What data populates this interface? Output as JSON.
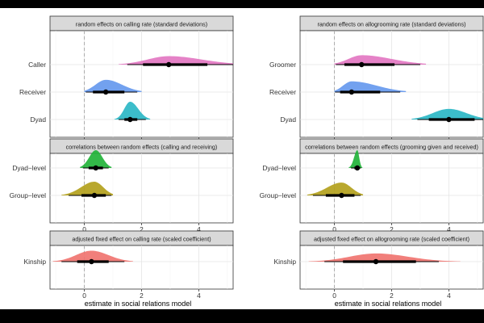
{
  "chart_data": [
    {
      "type": "halfeye",
      "title": "random effects on calling rate (standard deviations)",
      "xlim": [
        -1.2,
        5.2
      ],
      "xticks": [
        0,
        2,
        4
      ],
      "categories": [
        "Caller",
        "Receiver",
        "Dyad"
      ],
      "series": [
        {
          "label": "Caller",
          "color": "#E377C2",
          "median": 2.95,
          "interval66": [
            2.05,
            4.3
          ],
          "interval95": [
            1.5,
            5.2
          ],
          "density_range": [
            1.2,
            5.2
          ]
        },
        {
          "label": "Receiver",
          "color": "#6699EE",
          "median": 0.75,
          "interval66": [
            0.3,
            1.4
          ],
          "interval95": [
            0.05,
            1.85
          ],
          "density_range": [
            0.0,
            2.0
          ]
        },
        {
          "label": "Dyad",
          "color": "#2BB7C6",
          "median": 1.6,
          "interval66": [
            1.4,
            1.85
          ],
          "interval95": [
            1.2,
            2.15
          ],
          "density_range": [
            1.05,
            2.3
          ]
        }
      ]
    },
    {
      "type": "halfeye",
      "title": "random effects on allogrooming rate (standard deviations)",
      "xlim": [
        -1.2,
        5.2
      ],
      "xticks": [
        0,
        2,
        4
      ],
      "categories": [
        "Groomer",
        "Receiver",
        "Dyad"
      ],
      "series": [
        {
          "label": "Groomer",
          "color": "#E377C2",
          "median": 0.95,
          "interval66": [
            0.35,
            2.1
          ],
          "interval95": [
            0.05,
            3.0
          ],
          "density_range": [
            0.0,
            3.2
          ]
        },
        {
          "label": "Receiver",
          "color": "#6699EE",
          "median": 0.6,
          "interval66": [
            0.2,
            1.6
          ],
          "interval95": [
            0.02,
            2.3
          ],
          "density_range": [
            0.0,
            2.5
          ]
        },
        {
          "label": "Dyad",
          "color": "#2BB7C6",
          "median": 4.0,
          "interval66": [
            3.3,
            4.9
          ],
          "interval95": [
            2.9,
            5.2
          ],
          "density_range": [
            2.7,
            5.2
          ]
        }
      ]
    },
    {
      "type": "halfeye",
      "title": "correlations between random effects (calling and receiving)",
      "xlim": [
        -1.2,
        5.2
      ],
      "xticks": [
        0,
        2,
        4
      ],
      "categories": [
        "Dyad−level",
        "Group−level"
      ],
      "series": [
        {
          "label": "Dyad−level",
          "color": "#22B33A",
          "median": 0.4,
          "interval66": [
            0.15,
            0.65
          ],
          "interval95": [
            -0.05,
            0.85
          ],
          "density_range": [
            -0.15,
            0.95
          ]
        },
        {
          "label": "Group−level",
          "color": "#B3A11C",
          "median": 0.35,
          "interval66": [
            -0.1,
            0.75
          ],
          "interval95": [
            -0.55,
            0.95
          ],
          "density_range": [
            -0.8,
            1.0
          ]
        }
      ]
    },
    {
      "type": "halfeye",
      "title": "correlations between random effects (grooming given and received)",
      "xlim": [
        -1.2,
        5.2
      ],
      "xticks": [
        0,
        2,
        4
      ],
      "categories": [
        "Dyad−level",
        "Group−level"
      ],
      "series": [
        {
          "label": "Dyad−level",
          "color": "#22B33A",
          "median": 0.8,
          "interval66": [
            0.7,
            0.88
          ],
          "interval95": [
            0.58,
            0.93
          ],
          "density_range": [
            0.5,
            0.98
          ]
        },
        {
          "label": "Group−level",
          "color": "#B3A11C",
          "median": 0.25,
          "interval66": [
            -0.3,
            0.7
          ],
          "interval95": [
            -0.75,
            0.92
          ],
          "density_range": [
            -0.95,
            1.0
          ]
        }
      ]
    },
    {
      "type": "halfeye",
      "title": "adjusted fixed effect on calling rate (scaled coefficient)",
      "xlim": [
        -1.2,
        5.2
      ],
      "xticks": [
        0,
        2,
        4
      ],
      "categories": [
        "Kinship"
      ],
      "series": [
        {
          "label": "Kinship",
          "color": "#F07470",
          "median": 0.25,
          "interval66": [
            -0.25,
            0.85
          ],
          "interval95": [
            -0.8,
            1.4
          ],
          "density_range": [
            -1.1,
            1.7
          ]
        }
      ]
    },
    {
      "type": "halfeye",
      "title": "adjusted fixed effect on allogrooming rate (scaled coefficient)",
      "xlim": [
        -1.2,
        5.2
      ],
      "xticks": [
        0,
        2,
        4
      ],
      "categories": [
        "Kinship"
      ],
      "series": [
        {
          "label": "Kinship",
          "color": "#F07470",
          "median": 1.45,
          "interval66": [
            0.3,
            2.85
          ],
          "interval95": [
            -0.35,
            3.65
          ],
          "density_range": [
            -0.9,
            4.4
          ]
        }
      ]
    }
  ],
  "xlabel": "estimate in social relations model"
}
